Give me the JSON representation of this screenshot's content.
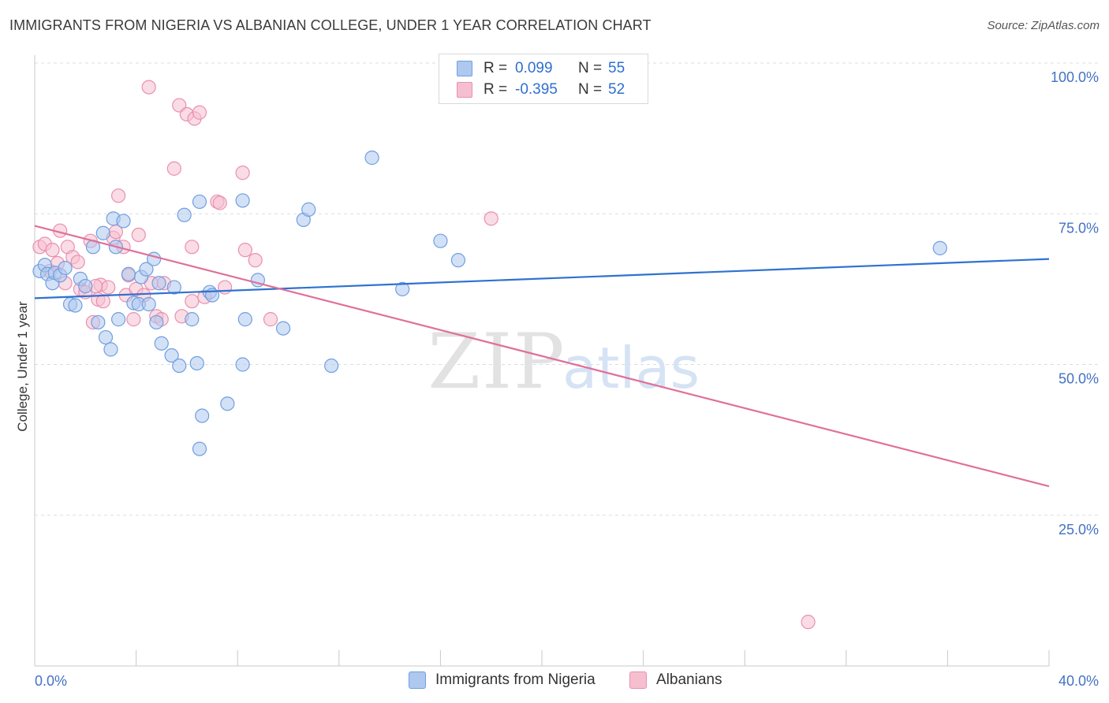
{
  "title": "IMMIGRANTS FROM NIGERIA VS ALBANIAN COLLEGE, UNDER 1 YEAR CORRELATION CHART",
  "source": "Source: ZipAtlas.com",
  "watermark": {
    "zip": "ZIP",
    "atlas": "atlas"
  },
  "colors": {
    "blue_fill": "#aec8ef",
    "blue_stroke": "#6f9fe0",
    "blue_line": "#2f72d0",
    "pink_fill": "#f6bfd0",
    "pink_stroke": "#ea8fb0",
    "pink_line": "#e0709a",
    "grid": "#d9dde3",
    "axis_text": "#4472c4"
  },
  "legend": {
    "rows": [
      {
        "r_label": "R =",
        "r_value": "0.099",
        "n_label": "N =",
        "n_value": "55",
        "swatch": "blue"
      },
      {
        "r_label": "R =",
        "r_value": "-0.395",
        "n_label": "N =",
        "n_value": "52",
        "swatch": "pink"
      }
    ]
  },
  "bottom_legend": [
    "Immigrants from Nigeria",
    "Albanians"
  ],
  "chart_data": {
    "type": "scatter",
    "ylabel": "College, Under 1 year",
    "xlim": [
      0,
      40
    ],
    "ylim": [
      0,
      105
    ],
    "x_tick_labels": [
      "0.0%",
      "40.0%"
    ],
    "y_tick_labels": [
      "100.0%",
      "75.0%",
      "50.0%",
      "25.0%"
    ],
    "y_ticks": [
      100,
      75,
      50,
      25
    ],
    "grid": true,
    "series": [
      {
        "name": "Immigrants from Nigeria",
        "color": "blue",
        "trend": {
          "x": [
            0,
            40
          ],
          "y": [
            61.0,
            67.5
          ]
        },
        "points": [
          [
            0.2,
            65.5
          ],
          [
            0.4,
            66.5
          ],
          [
            0.5,
            65.0
          ],
          [
            0.7,
            63.5
          ],
          [
            0.8,
            65.2
          ],
          [
            1.0,
            64.8
          ],
          [
            1.2,
            66.0
          ],
          [
            1.4,
            60.0
          ],
          [
            1.6,
            59.8
          ],
          [
            1.8,
            64.2
          ],
          [
            2.0,
            63.0
          ],
          [
            2.3,
            69.5
          ],
          [
            2.5,
            57.0
          ],
          [
            2.7,
            71.8
          ],
          [
            2.8,
            54.5
          ],
          [
            3.0,
            52.5
          ],
          [
            3.1,
            74.2
          ],
          [
            3.2,
            69.5
          ],
          [
            3.3,
            57.5
          ],
          [
            3.5,
            73.8
          ],
          [
            3.7,
            65.0
          ],
          [
            3.9,
            60.2
          ],
          [
            4.1,
            60.0
          ],
          [
            4.2,
            64.5
          ],
          [
            4.4,
            65.8
          ],
          [
            4.5,
            60.0
          ],
          [
            4.7,
            67.5
          ],
          [
            4.8,
            57.0
          ],
          [
            4.9,
            63.5
          ],
          [
            5.0,
            53.5
          ],
          [
            5.4,
            51.5
          ],
          [
            5.5,
            62.8
          ],
          [
            5.7,
            49.8
          ],
          [
            5.9,
            74.8
          ],
          [
            6.2,
            57.5
          ],
          [
            6.4,
            50.2
          ],
          [
            6.5,
            36.0
          ],
          [
            6.6,
            41.5
          ],
          [
            6.9,
            62.0
          ],
          [
            7.0,
            61.5
          ],
          [
            7.6,
            43.5
          ],
          [
            8.2,
            50.0
          ],
          [
            8.3,
            57.5
          ],
          [
            8.8,
            64.0
          ],
          [
            9.8,
            56.0
          ],
          [
            10.6,
            74.0
          ],
          [
            10.8,
            75.7
          ],
          [
            11.7,
            49.8
          ],
          [
            13.3,
            84.3
          ],
          [
            14.5,
            62.5
          ],
          [
            16.0,
            70.5
          ],
          [
            16.7,
            67.3
          ],
          [
            35.7,
            69.3
          ],
          [
            6.5,
            77.0
          ],
          [
            8.2,
            77.2
          ]
        ]
      },
      {
        "name": "Albanians",
        "color": "pink",
        "trend": {
          "x": [
            0,
            40
          ],
          "y": [
            73.0,
            29.8
          ]
        },
        "points": [
          [
            0.2,
            69.5
          ],
          [
            0.4,
            70.0
          ],
          [
            0.6,
            65.5
          ],
          [
            0.7,
            69.0
          ],
          [
            0.9,
            66.8
          ],
          [
            1.0,
            72.2
          ],
          [
            1.2,
            63.5
          ],
          [
            1.3,
            69.5
          ],
          [
            1.5,
            67.8
          ],
          [
            1.7,
            67.0
          ],
          [
            1.8,
            62.5
          ],
          [
            2.0,
            62.0
          ],
          [
            2.2,
            70.5
          ],
          [
            2.3,
            57.0
          ],
          [
            2.5,
            60.8
          ],
          [
            2.6,
            63.2
          ],
          [
            2.7,
            60.5
          ],
          [
            2.9,
            62.8
          ],
          [
            3.1,
            71.0
          ],
          [
            3.2,
            72.0
          ],
          [
            3.3,
            78.0
          ],
          [
            3.5,
            69.5
          ],
          [
            3.6,
            61.5
          ],
          [
            3.7,
            64.8
          ],
          [
            3.9,
            57.5
          ],
          [
            4.0,
            62.5
          ],
          [
            4.1,
            71.5
          ],
          [
            4.3,
            61.5
          ],
          [
            4.5,
            96.0
          ],
          [
            4.6,
            63.5
          ],
          [
            4.8,
            58.0
          ],
          [
            5.0,
            57.5
          ],
          [
            5.1,
            63.5
          ],
          [
            5.5,
            82.5
          ],
          [
            5.7,
            93.0
          ],
          [
            5.8,
            58.0
          ],
          [
            6.0,
            91.5
          ],
          [
            6.2,
            69.5
          ],
          [
            6.3,
            90.8
          ],
          [
            6.5,
            91.8
          ],
          [
            6.7,
            61.2
          ],
          [
            7.2,
            77.0
          ],
          [
            7.3,
            76.8
          ],
          [
            7.5,
            62.8
          ],
          [
            8.2,
            81.8
          ],
          [
            8.3,
            69.0
          ],
          [
            8.7,
            67.3
          ],
          [
            9.3,
            57.5
          ],
          [
            18.0,
            74.2
          ],
          [
            30.5,
            7.3
          ],
          [
            6.2,
            60.5
          ],
          [
            2.4,
            63.0
          ]
        ]
      }
    ]
  }
}
